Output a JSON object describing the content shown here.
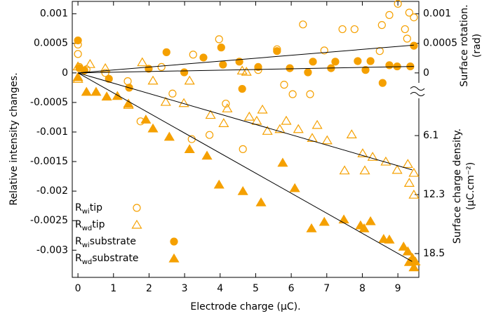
{
  "chart_data": {
    "type": "scatter",
    "xlabel": "Electrode charge (µC).",
    "ylabel": "Relative intensity changes.",
    "xlim": [
      -0.16,
      9.59
    ],
    "ylim": [
      -0.00346,
      0.00121
    ],
    "xticks": [
      0,
      1,
      2,
      3,
      4,
      5,
      6,
      7,
      8,
      9
    ],
    "yticks": [
      0.001,
      0.0005,
      0,
      -0.0005,
      -0.001,
      -0.0015,
      -0.002,
      -0.0025,
      -0.003
    ],
    "rotation_axis": {
      "label": [
        "Surface rotation.",
        "(rad)"
      ],
      "ticks": [
        0.001,
        0.0005,
        0
      ]
    },
    "charge_axis": {
      "label": [
        "Surface charge density.",
        "(µC.cm⁻²)"
      ],
      "lim": [
        21.0,
        -8.0
      ],
      "ticks": [
        6.1,
        12.3,
        18.5
      ]
    },
    "series": [
      {
        "name": {
          "base": "R",
          "sub": "wi",
          "rest": "tip"
        },
        "marker": "circle",
        "filled": false,
        "color": "#f5a000",
        "x": [
          0,
          0,
          0.04,
          0.24,
          0.77,
          1.4,
          1.76,
          2.35,
          2.66,
          3.2,
          3.24,
          3.7,
          3.97,
          4.16,
          4.64,
          5.07,
          5.6,
          5.8,
          6.04,
          6.33,
          6.53,
          6.93,
          7.44,
          7.78,
          8.49,
          8.55,
          8.76,
          9.0,
          9.2,
          9.32,
          9.45,
          9.26
        ],
        "y": [
          0.00048,
          0.00032,
          0.0001,
          6e-05,
          0,
          -0.00014,
          -0.00082,
          0.0001,
          -0.00035,
          -0.00112,
          0.00031,
          -0.00105,
          0.00057,
          -0.00052,
          -0.00129,
          5e-05,
          0.0004,
          -0.0002,
          -0.00036,
          0.00082,
          -0.00036,
          0.00038,
          0.00074,
          0.00074,
          0.00037,
          0.00081,
          0.00098,
          0.00117,
          0.00074,
          0.00102,
          0.00094,
          0.00058
        ]
      },
      {
        "name": {
          "base": "R",
          "sub": "wd",
          "rest": "tip"
        },
        "marker": "triangle",
        "filled": false,
        "color": "#f5a000",
        "x": [
          0,
          0,
          0.34,
          0.77,
          1.42,
          1.81,
          2.11,
          2.47,
          2.98,
          3.14,
          3.73,
          4.1,
          4.2,
          4.62,
          4.74,
          4.82,
          5.03,
          5.19,
          5.33,
          5.68,
          5.86,
          6.2,
          6.59,
          6.73,
          7.01,
          7.5,
          7.7,
          8.01,
          8.07,
          8.29,
          8.66,
          8.98,
          9.32,
          9.45,
          9.45,
          9.28
        ],
        "y": [
          -0.0001,
          0.00011,
          0.00015,
          8e-05,
          -0.00054,
          0.00018,
          -0.00013,
          -0.00049,
          -0.00051,
          -0.00013,
          -0.00071,
          -0.00085,
          -0.0006,
          4e-05,
          2e-05,
          -0.00074,
          -0.00081,
          -0.00062,
          -0.00098,
          -0.00095,
          -0.00081,
          -0.00095,
          -0.0011,
          -0.00088,
          -0.00114,
          -0.00165,
          -0.00104,
          -0.00136,
          -0.00165,
          -0.00142,
          -0.0015,
          -0.00164,
          -0.00186,
          -0.00169,
          -0.00206,
          -0.00154
        ]
      },
      {
        "name": {
          "base": "R",
          "sub": "wi",
          "rest": "substrate"
        },
        "marker": "circle",
        "filled": true,
        "color": "#f5a000",
        "x": [
          0,
          0.04,
          0.18,
          0.87,
          1.44,
          1.99,
          2.49,
          2.99,
          3.53,
          4.03,
          4.08,
          4.54,
          4.62,
          5.07,
          5.6,
          5.96,
          6.47,
          6.61,
          7.12,
          7.24,
          7.87,
          8.09,
          8.23,
          8.57,
          8.76,
          8.98,
          9.35,
          9.45
        ],
        "y": [
          0.00055,
          8e-05,
          4e-05,
          -0.0001,
          -0.00025,
          7e-05,
          0.00035,
          1e-05,
          0.00026,
          0.00043,
          0.00014,
          0.00019,
          -0.00027,
          0.0001,
          0.00037,
          8e-05,
          1e-05,
          0.00019,
          8e-05,
          0.00019,
          0.0002,
          5e-05,
          0.0002,
          -0.00017,
          0.00013,
          0.00011,
          0.00011,
          0.00046
        ]
      },
      {
        "name": {
          "base": "R",
          "sub": "wd",
          "rest": "substrate"
        },
        "marker": "triangle",
        "filled": true,
        "color": "#f5a000",
        "x": [
          0,
          0.24,
          0.51,
          0.81,
          1.11,
          1.42,
          1.91,
          2.11,
          2.57,
          3.14,
          3.63,
          3.97,
          4.64,
          5.15,
          5.76,
          6.1,
          6.57,
          6.93,
          7.48,
          7.95,
          8.05,
          8.23,
          8.6,
          8.76,
          9.16,
          9.28,
          9.41,
          9.32,
          9.49,
          9.45
        ],
        "y": [
          -7e-05,
          -0.00032,
          -0.00032,
          -0.0004,
          -0.00039,
          -0.00052,
          -0.00079,
          -0.00094,
          -0.00108,
          -0.00129,
          -0.0014,
          -0.00189,
          -0.002,
          -0.00219,
          -0.00152,
          -0.00195,
          -0.00263,
          -0.00252,
          -0.00248,
          -0.00258,
          -0.00263,
          -0.00251,
          -0.00281,
          -0.00282,
          -0.00294,
          -0.00302,
          -0.00313,
          -0.0032,
          -0.00319,
          -0.00329
        ]
      }
    ],
    "fit_lines": [
      {
        "x": [
          0,
          9.45
        ],
        "y": [
          0,
          0.00047
        ]
      },
      {
        "x": [
          0,
          9.45
        ],
        "y": [
          0,
          0.00011
        ]
      },
      {
        "x": [
          0,
          9.4
        ],
        "y": [
          0,
          -0.00164
        ]
      },
      {
        "x": [
          0,
          9.4
        ],
        "y": [
          0,
          -0.00319
        ]
      }
    ]
  }
}
